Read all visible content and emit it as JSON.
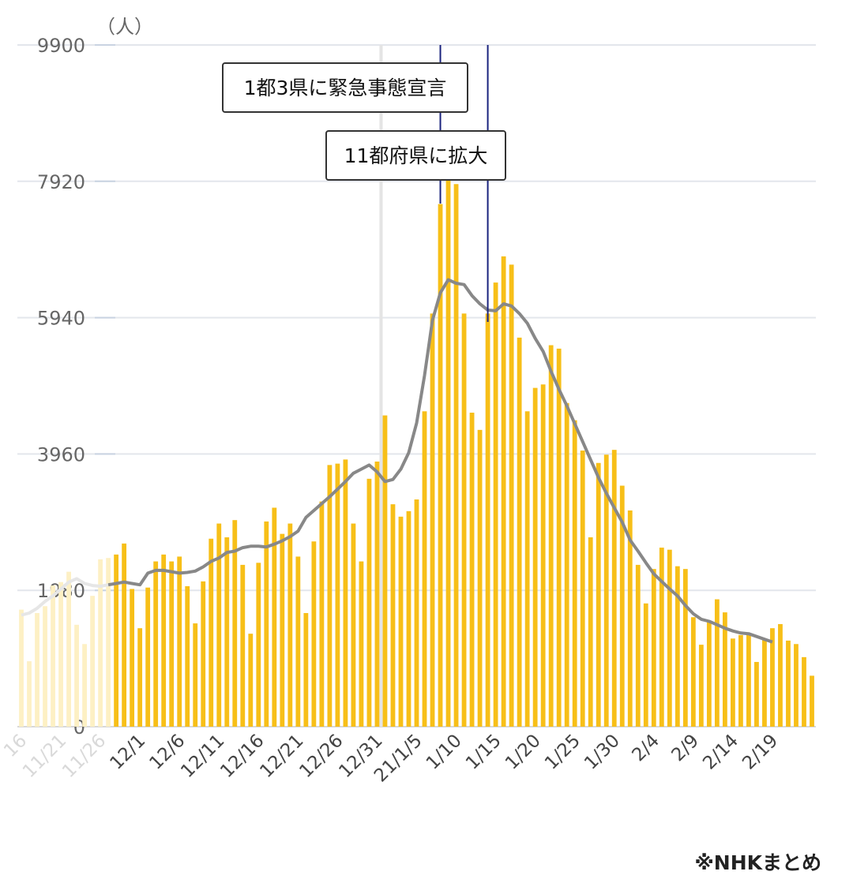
{
  "chart_data": {
    "type": "bar",
    "unit_label": "（人）",
    "source": "※NHKまとめ",
    "y_ticks": [
      "0",
      "1980",
      "3960",
      "5940",
      "7920",
      "9900"
    ],
    "ylim": [
      0,
      9900
    ],
    "grid": true,
    "colors": {
      "bar": "#f7bf18",
      "bar_faded": "#fdf0c4",
      "line": "#888888",
      "line_faded": "#e6e6e6",
      "marker": "#1a237e"
    },
    "x_tick_labels": [
      {
        "label": "16",
        "index": 0,
        "faded": true
      },
      {
        "label": "11/21",
        "index": 5,
        "faded": true
      },
      {
        "label": "11/26",
        "index": 10,
        "faded": true
      },
      {
        "label": "12/1",
        "index": 15,
        "faded": false
      },
      {
        "label": "12/6",
        "index": 20,
        "faded": false
      },
      {
        "label": "12/11",
        "index": 25,
        "faded": false
      },
      {
        "label": "12/16",
        "index": 30,
        "faded": false
      },
      {
        "label": "12/21",
        "index": 35,
        "faded": false
      },
      {
        "label": "12/26",
        "index": 40,
        "faded": false
      },
      {
        "label": "12/31",
        "index": 45,
        "faded": false
      },
      {
        "label": "21/1/5",
        "index": 50,
        "faded": false
      },
      {
        "label": "1/10",
        "index": 55,
        "faded": false
      },
      {
        "label": "1/15",
        "index": 60,
        "faded": false
      },
      {
        "label": "1/20",
        "index": 65,
        "faded": false
      },
      {
        "label": "1/25",
        "index": 70,
        "faded": false
      },
      {
        "label": "1/30",
        "index": 75,
        "faded": false
      },
      {
        "label": "2/4",
        "index": 80,
        "faded": false
      },
      {
        "label": "2/9",
        "index": 85,
        "faded": false
      },
      {
        "label": "2/14",
        "index": 90,
        "faded": false
      },
      {
        "label": "2/19",
        "index": 95,
        "faded": false
      }
    ],
    "faded_count": 12,
    "values": [
      1700,
      950,
      1650,
      1750,
      2050,
      2100,
      2250,
      1480,
      1200,
      1900,
      2430,
      2450,
      2500,
      2660,
      2000,
      1430,
      2020,
      2400,
      2500,
      2400,
      2470,
      2040,
      1500,
      2110,
      2730,
      2950,
      2750,
      3000,
      2350,
      1350,
      2380,
      2980,
      3180,
      2800,
      2950,
      2470,
      1650,
      2690,
      3270,
      3800,
      3820,
      3880,
      2950,
      2400,
      3600,
      3850,
      4520,
      3230,
      3050,
      3130,
      3300,
      4580,
      6000,
      7590,
      7990,
      7880,
      6000,
      4560,
      4310,
      6000,
      6450,
      6830,
      6710,
      5650,
      4580,
      4920,
      4970,
      5540,
      5490,
      4700,
      4450,
      4010,
      2750,
      3830,
      3950,
      4020,
      3500,
      3140,
      2350,
      1790,
      2290,
      2600,
      2570,
      2330,
      2290,
      1590,
      1190,
      1540,
      1850,
      1660,
      1280,
      1330,
      1330,
      940,
      1260,
      1430,
      1490,
      1250,
      1200,
      1010,
      740
    ],
    "moving_average": [
      1620,
      1650,
      1720,
      1820,
      1900,
      2000,
      2100,
      2150,
      2080,
      2050,
      2040,
      2060,
      2080,
      2100,
      2080,
      2060,
      2230,
      2270,
      2270,
      2250,
      2230,
      2240,
      2260,
      2320,
      2400,
      2450,
      2530,
      2550,
      2600,
      2620,
      2620,
      2610,
      2650,
      2700,
      2760,
      2840,
      3040,
      3140,
      3240,
      3340,
      3450,
      3560,
      3680,
      3740,
      3800,
      3700,
      3560,
      3590,
      3740,
      3980,
      4410,
      5100,
      5900,
      6300,
      6490,
      6440,
      6420,
      6260,
      6140,
      6050,
      6040,
      6140,
      6110,
      6000,
      5860,
      5640,
      5450,
      5160,
      4900,
      4660,
      4400,
      4140,
      3880,
      3620,
      3390,
      3180,
      2970,
      2710,
      2550,
      2380,
      2220,
      2110,
      2000,
      1900,
      1760,
      1640,
      1560,
      1530,
      1480,
      1430,
      1390,
      1360,
      1350,
      1310,
      1270,
      1230
    ],
    "annotations": [
      {
        "text": "1都3県に緊急事態宣言",
        "index": 53
      },
      {
        "text": "11都府県に拡大",
        "index": 59
      }
    ]
  }
}
